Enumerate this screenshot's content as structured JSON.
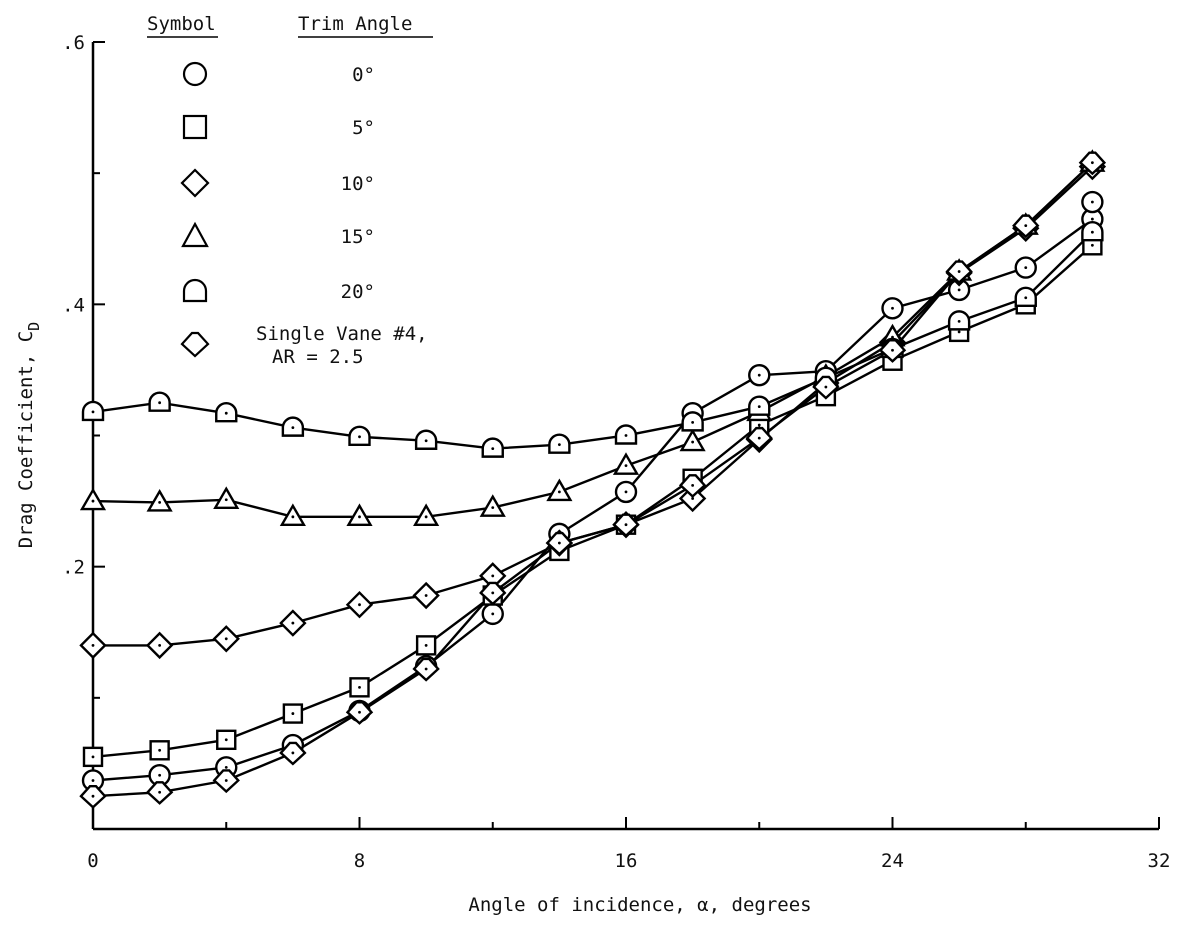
{
  "chart_data": {
    "type": "line",
    "xlabel": "Angle of incidence,  α,  degrees",
    "ylabel_main": "Drag Coefficient,  C",
    "ylabel_sub": "D",
    "xlim": [
      0,
      32
    ],
    "ylim": [
      0,
      0.6
    ],
    "x_ticks_major": [
      0,
      8,
      16,
      24,
      32
    ],
    "x_tick_labels": [
      "0",
      "8",
      "16",
      "24",
      "32"
    ],
    "x_ticks_minor": [
      4,
      12,
      20,
      28
    ],
    "y_ticks_major": [
      0.2,
      0.4,
      0.6
    ],
    "y_tick_labels": [
      ".2",
      ".4",
      ".6"
    ],
    "y_ticks_minor": [
      0.1,
      0.3,
      0.5
    ],
    "grid": false,
    "legend": {
      "placement": "top-left",
      "symbol_header": "Symbol",
      "value_header": "Trim Angle",
      "entries": [
        {
          "marker": "circle",
          "label": "0°"
        },
        {
          "marker": "square",
          "label": "5°"
        },
        {
          "marker": "diamond",
          "label": "10°"
        },
        {
          "marker": "triangle",
          "label": "15°"
        },
        {
          "marker": "flat-circle",
          "label": "20°"
        },
        {
          "marker": "flat-diamond",
          "label": "Single Vane #4,",
          "label2": "AR = 2.5"
        }
      ]
    },
    "series": [
      {
        "name": "0°",
        "marker": "circle",
        "x": [
          0,
          2,
          4,
          6,
          8,
          10,
          12,
          14,
          16,
          18,
          20,
          22,
          24,
          26,
          28,
          30,
          30
        ],
        "y": [
          0.037,
          0.041,
          0.047,
          0.064,
          0.09,
          0.124,
          0.164,
          0.225,
          0.257,
          0.317,
          0.346,
          0.349,
          0.397,
          0.411,
          0.428,
          0.465,
          0.478
        ]
      },
      {
        "name": "5°",
        "marker": "square",
        "x": [
          0,
          2,
          4,
          6,
          8,
          10,
          12,
          14,
          16,
          18,
          20,
          22,
          24,
          26,
          28,
          30
        ],
        "y": [
          0.055,
          0.06,
          0.068,
          0.088,
          0.108,
          0.14,
          0.178,
          0.212,
          0.232,
          0.267,
          0.308,
          0.33,
          0.357,
          0.379,
          0.4,
          0.445
        ]
      },
      {
        "name": "10°",
        "marker": "diamond",
        "x": [
          0,
          2,
          4,
          6,
          8,
          10,
          12,
          14,
          16,
          18,
          20,
          22,
          24,
          26,
          28,
          30
        ],
        "y": [
          0.14,
          0.14,
          0.145,
          0.157,
          0.171,
          0.178,
          0.193,
          0.218,
          0.232,
          0.252,
          0.297,
          0.34,
          0.371,
          0.424,
          0.458,
          0.505
        ]
      },
      {
        "name": "15°",
        "marker": "triangle",
        "x": [
          0,
          2,
          4,
          6,
          8,
          10,
          12,
          14,
          16,
          18,
          20,
          22,
          24,
          26,
          28,
          30
        ],
        "y": [
          0.25,
          0.249,
          0.251,
          0.238,
          0.238,
          0.238,
          0.245,
          0.257,
          0.277,
          0.295,
          0.318,
          0.345,
          0.375,
          0.425,
          0.46,
          0.508
        ]
      },
      {
        "name": "20°",
        "marker": "flat-circle",
        "x": [
          0,
          2,
          4,
          6,
          8,
          10,
          12,
          14,
          16,
          18,
          20,
          22,
          24,
          26,
          28,
          30
        ],
        "y": [
          0.318,
          0.325,
          0.317,
          0.306,
          0.299,
          0.296,
          0.29,
          0.293,
          0.3,
          0.31,
          0.322,
          0.344,
          0.366,
          0.387,
          0.405,
          0.455
        ]
      },
      {
        "name": "Single Vane #4, AR = 2.5",
        "marker": "flat-diamond",
        "x": [
          0,
          2,
          4,
          6,
          8,
          10,
          12,
          14,
          16,
          18,
          20,
          22,
          24,
          26,
          28,
          30
        ],
        "y": [
          0.025,
          0.028,
          0.037,
          0.058,
          0.089,
          0.122,
          0.18,
          0.218,
          0.232,
          0.262,
          0.298,
          0.337,
          0.365,
          0.425,
          0.46,
          0.508
        ]
      }
    ]
  }
}
